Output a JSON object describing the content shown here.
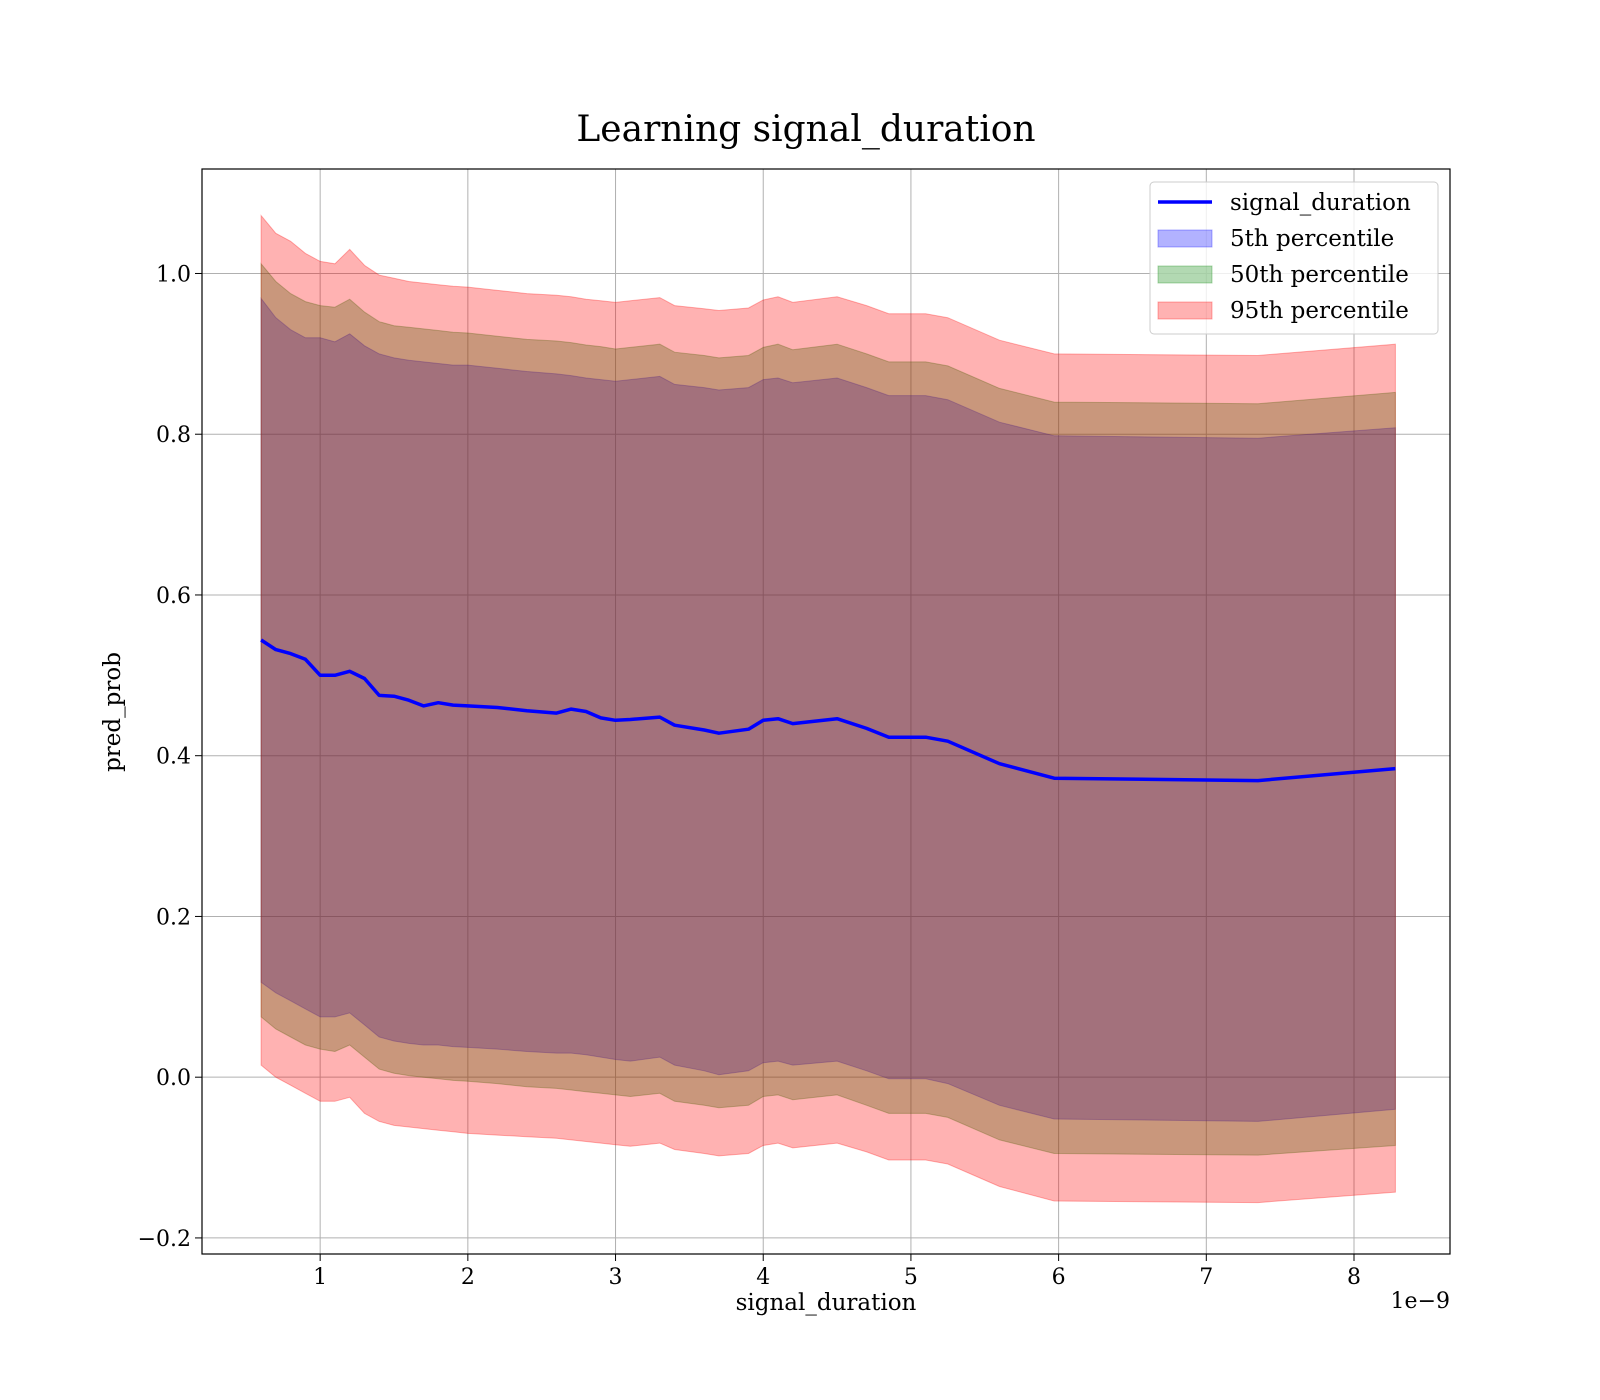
{
  "chart_data": {
    "type": "area",
    "title": "Learning signal_duration",
    "xlabel": "signal_duration",
    "ylabel": "pred_prob",
    "x_offset_text": "1e−9",
    "xlim": [
      0.2,
      8.65
    ],
    "ylim": [
      -0.22,
      1.13
    ],
    "x_ticks": [
      1,
      2,
      3,
      4,
      5,
      6,
      7,
      8
    ],
    "x_tick_labels": [
      "1",
      "2",
      "3",
      "4",
      "5",
      "6",
      "7",
      "8"
    ],
    "y_ticks": [
      -0.2,
      0.0,
      0.2,
      0.4,
      0.6,
      0.8,
      1.0
    ],
    "y_tick_labels": [
      "−0.2",
      "0.0",
      "0.2",
      "0.4",
      "0.6",
      "0.8",
      "1.0"
    ],
    "grid": true,
    "legend_position": "top-right",
    "x": [
      0.6,
      0.7,
      0.8,
      0.9,
      1.0,
      1.1,
      1.2,
      1.3,
      1.4,
      1.5,
      1.6,
      1.7,
      1.8,
      1.9,
      2.0,
      2.2,
      2.4,
      2.6,
      2.7,
      2.8,
      2.9,
      3.0,
      3.1,
      3.3,
      3.4,
      3.6,
      3.7,
      3.9,
      4.0,
      4.1,
      4.2,
      4.5,
      4.7,
      4.85,
      5.1,
      5.25,
      5.6,
      5.97,
      7.35,
      8.28
    ],
    "series": [
      {
        "name": "signal_duration",
        "kind": "line",
        "color": "#0000ff",
        "values": [
          0.544,
          0.532,
          0.527,
          0.52,
          0.5,
          0.5,
          0.505,
          0.496,
          0.475,
          0.474,
          0.469,
          0.462,
          0.466,
          0.463,
          0.462,
          0.46,
          0.456,
          0.453,
          0.458,
          0.455,
          0.447,
          0.444,
          0.445,
          0.448,
          0.438,
          0.432,
          0.428,
          0.433,
          0.444,
          0.446,
          0.44,
          0.446,
          0.434,
          0.423,
          0.423,
          0.418,
          0.39,
          0.372,
          0.369,
          0.384
        ]
      },
      {
        "name": "5th percentile",
        "kind": "band",
        "color": "#0000ff",
        "upper": [
          0.969,
          0.945,
          0.93,
          0.92,
          0.92,
          0.915,
          0.925,
          0.91,
          0.9,
          0.895,
          0.892,
          0.89,
          0.888,
          0.886,
          0.886,
          0.882,
          0.878,
          0.875,
          0.873,
          0.87,
          0.868,
          0.866,
          0.868,
          0.872,
          0.862,
          0.858,
          0.855,
          0.858,
          0.868,
          0.87,
          0.864,
          0.87,
          0.858,
          0.848,
          0.848,
          0.843,
          0.815,
          0.798,
          0.795,
          0.808
        ],
        "lower": [
          0.118,
          0.105,
          0.095,
          0.085,
          0.075,
          0.075,
          0.08,
          0.065,
          0.05,
          0.045,
          0.042,
          0.04,
          0.04,
          0.038,
          0.037,
          0.035,
          0.032,
          0.03,
          0.03,
          0.028,
          0.025,
          0.022,
          0.02,
          0.025,
          0.015,
          0.008,
          0.003,
          0.008,
          0.018,
          0.02,
          0.015,
          0.02,
          0.008,
          -0.002,
          -0.002,
          -0.008,
          -0.035,
          -0.052,
          -0.055,
          -0.04
        ]
      },
      {
        "name": "50th percentile",
        "kind": "band",
        "color": "#008000",
        "upper": [
          1.012,
          0.99,
          0.975,
          0.965,
          0.96,
          0.958,
          0.968,
          0.952,
          0.94,
          0.935,
          0.933,
          0.931,
          0.929,
          0.927,
          0.926,
          0.922,
          0.918,
          0.916,
          0.914,
          0.911,
          0.909,
          0.906,
          0.908,
          0.912,
          0.902,
          0.898,
          0.895,
          0.898,
          0.908,
          0.912,
          0.905,
          0.912,
          0.9,
          0.89,
          0.89,
          0.885,
          0.857,
          0.84,
          0.838,
          0.852
        ],
        "lower": [
          0.075,
          0.06,
          0.05,
          0.04,
          0.035,
          0.032,
          0.04,
          0.025,
          0.01,
          0.005,
          0.002,
          0.0,
          -0.002,
          -0.004,
          -0.005,
          -0.008,
          -0.012,
          -0.014,
          -0.016,
          -0.018,
          -0.02,
          -0.022,
          -0.024,
          -0.02,
          -0.03,
          -0.035,
          -0.038,
          -0.035,
          -0.024,
          -0.022,
          -0.028,
          -0.022,
          -0.035,
          -0.045,
          -0.045,
          -0.05,
          -0.078,
          -0.095,
          -0.097,
          -0.085
        ]
      },
      {
        "name": "95th percentile",
        "kind": "band",
        "color": "#ff0000",
        "upper": [
          1.072,
          1.05,
          1.04,
          1.025,
          1.015,
          1.012,
          1.03,
          1.01,
          0.998,
          0.994,
          0.99,
          0.988,
          0.986,
          0.984,
          0.983,
          0.979,
          0.975,
          0.973,
          0.971,
          0.968,
          0.966,
          0.964,
          0.966,
          0.97,
          0.96,
          0.956,
          0.954,
          0.957,
          0.967,
          0.971,
          0.964,
          0.971,
          0.96,
          0.95,
          0.95,
          0.945,
          0.917,
          0.9,
          0.898,
          0.912
        ],
        "lower": [
          0.015,
          0.0,
          -0.01,
          -0.02,
          -0.03,
          -0.03,
          -0.025,
          -0.045,
          -0.055,
          -0.06,
          -0.062,
          -0.064,
          -0.066,
          -0.068,
          -0.07,
          -0.072,
          -0.074,
          -0.076,
          -0.078,
          -0.08,
          -0.082,
          -0.084,
          -0.086,
          -0.082,
          -0.09,
          -0.095,
          -0.098,
          -0.095,
          -0.085,
          -0.082,
          -0.088,
          -0.082,
          -0.093,
          -0.103,
          -0.103,
          -0.108,
          -0.136,
          -0.154,
          -0.156,
          -0.143
        ]
      }
    ]
  }
}
